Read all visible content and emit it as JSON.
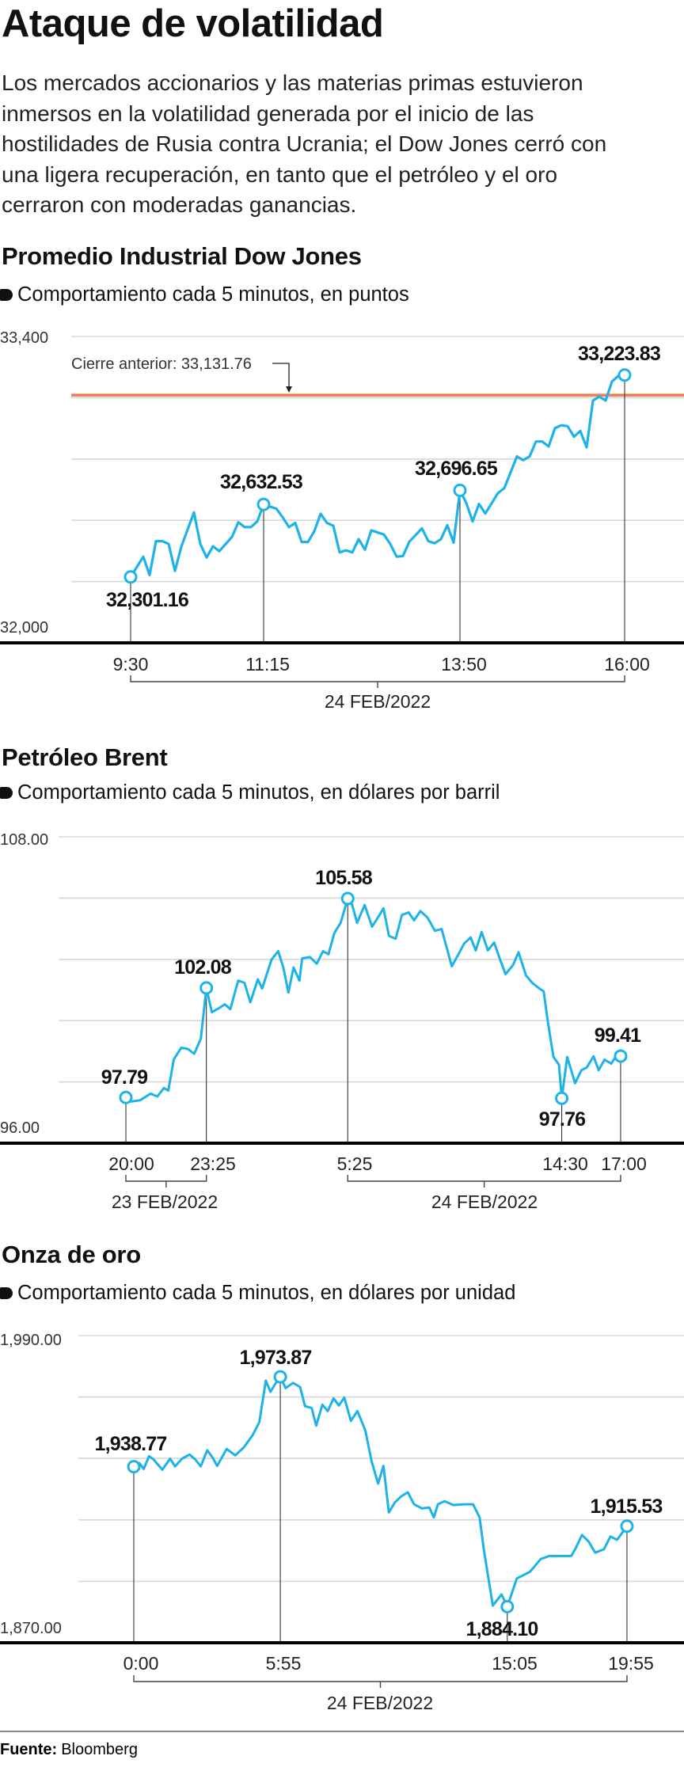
{
  "header": {
    "title": "Ataque de volatilidad",
    "intro_lines": [
      "Los mercados accionarios y las materias primas estuvieron",
      "inmersos en la volatilidad generada por el inicio de las",
      "hostilidades de Rusia contra Ucrania; el Dow Jones cerró con",
      "una ligera recuperación, en tanto que el petróleo y el oro",
      "cerraron con moderadas ganancias."
    ]
  },
  "footer": {
    "source_label": "Fuente:",
    "source": "Bloomberg"
  },
  "colors": {
    "line": "#1db2e8",
    "reference": "#f07c4c",
    "grid": "#d8d8d8",
    "axis": "#000000"
  },
  "chart_data": [
    {
      "type": "line",
      "title": "Promedio Industrial Dow Jones",
      "subtitle": "Comportamiento cada 5 minutos, en puntos",
      "ylim": [
        32000,
        33400
      ],
      "y_ticks_labeled": [
        "33,400",
        "32,000"
      ],
      "gridlines": [
        33400,
        33120,
        32840,
        32560,
        32280
      ],
      "x_unit": "minutes since 9:30",
      "x_tick_labels": [
        "9:30",
        "11:15",
        "13:50",
        "16:00"
      ],
      "date_groups": [
        {
          "label": "24 FEB/2022",
          "from": 0,
          "to": 390
        }
      ],
      "reference": {
        "label": "Cierre anterior: 33,131.76",
        "value": 33131.76
      },
      "annotations": [
        {
          "x": 0,
          "value": 32301.16,
          "label": "32,301.16"
        },
        {
          "x": 105,
          "value": 32632.53,
          "label": "32,632.53"
        },
        {
          "x": 260,
          "value": 32696.65,
          "label": "32,696.65"
        },
        {
          "x": 390,
          "value": 33223.83,
          "label": "33,223.83"
        }
      ],
      "series": [
        [
          0,
          32301.16
        ],
        [
          10,
          32394
        ],
        [
          15,
          32310
        ],
        [
          20,
          32465
        ],
        [
          25,
          32465
        ],
        [
          30,
          32452
        ],
        [
          35,
          32329
        ],
        [
          40,
          32439
        ],
        [
          50,
          32596
        ],
        [
          55,
          32452
        ],
        [
          60,
          32390
        ],
        [
          65,
          32441
        ],
        [
          70,
          32419
        ],
        [
          80,
          32484
        ],
        [
          85,
          32551
        ],
        [
          90,
          32529
        ],
        [
          95,
          32529
        ],
        [
          100,
          32555
        ],
        [
          105,
          32632.53
        ],
        [
          115,
          32613
        ],
        [
          120,
          32574
        ],
        [
          125,
          32529
        ],
        [
          130,
          32548
        ],
        [
          135,
          32461
        ],
        [
          140,
          32461
        ],
        [
          145,
          32510
        ],
        [
          150,
          32590
        ],
        [
          155,
          32548
        ],
        [
          160,
          32535
        ],
        [
          165,
          32413
        ],
        [
          170,
          32423
        ],
        [
          175,
          32413
        ],
        [
          180,
          32474
        ],
        [
          185,
          32426
        ],
        [
          190,
          32514
        ],
        [
          200,
          32495
        ],
        [
          205,
          32452
        ],
        [
          210,
          32394
        ],
        [
          215,
          32397
        ],
        [
          220,
          32462
        ],
        [
          230,
          32523
        ],
        [
          235,
          32465
        ],
        [
          240,
          32455
        ],
        [
          245,
          32474
        ],
        [
          250,
          32538
        ],
        [
          255,
          32458
        ],
        [
          260,
          32696.65
        ],
        [
          265,
          32639
        ],
        [
          270,
          32555
        ],
        [
          275,
          32635
        ],
        [
          280,
          32591
        ],
        [
          290,
          32684
        ],
        [
          295,
          32707
        ],
        [
          305,
          32852
        ],
        [
          310,
          32835
        ],
        [
          315,
          32852
        ],
        [
          320,
          32920
        ],
        [
          325,
          32920
        ],
        [
          330,
          32897
        ],
        [
          335,
          32981
        ],
        [
          340,
          32994
        ],
        [
          345,
          32990
        ],
        [
          350,
          32942
        ],
        [
          355,
          32968
        ],
        [
          360,
          32893
        ],
        [
          365,
          33107
        ],
        [
          370,
          33125
        ],
        [
          375,
          33107
        ],
        [
          380,
          33194
        ],
        [
          385,
          33220
        ],
        [
          390,
          33223.83
        ]
      ]
    },
    {
      "type": "line",
      "title": "Petróleo Brent",
      "subtitle": "Comportamiento cada 5 minutos, en dólares por barril",
      "ylim": [
        96,
        108
      ],
      "y_ticks_labeled": [
        "108.00",
        "96.00"
      ],
      "gridlines": [
        108,
        105.6,
        103.2,
        100.8,
        98.4
      ],
      "x_unit": "minutes since 20:00 (23 Feb)",
      "x_tick_labels": [
        "20:00",
        "23:25",
        "5:25",
        "14:30",
        "17:00"
      ],
      "date_groups": [
        {
          "label": "23 FEB/2022",
          "from": 0,
          "to": 205
        },
        {
          "label": "24 FEB/2022",
          "from": 565,
          "to": 1260
        }
      ],
      "annotations": [
        {
          "x": 0,
          "value": 97.79,
          "label": "97.79"
        },
        {
          "x": 205,
          "value": 102.08,
          "label": "102.08"
        },
        {
          "x": 565,
          "value": 105.58,
          "label": "105.58"
        },
        {
          "x": 1110,
          "value": 97.76,
          "label": "97.76"
        },
        {
          "x": 1260,
          "value": 99.41,
          "label": "99.41"
        }
      ],
      "series": [
        [
          0,
          97.79
        ],
        [
          13,
          97.63
        ],
        [
          36,
          97.68
        ],
        [
          63,
          97.94
        ],
        [
          80,
          97.83
        ],
        [
          97,
          98.16
        ],
        [
          108,
          98.06
        ],
        [
          122,
          99.28
        ],
        [
          141,
          99.74
        ],
        [
          158,
          99.69
        ],
        [
          174,
          99.5
        ],
        [
          191,
          100.1
        ],
        [
          205,
          102.08
        ],
        [
          219,
          101.13
        ],
        [
          236,
          101.28
        ],
        [
          252,
          101.44
        ],
        [
          266,
          101.25
        ],
        [
          286,
          102.37
        ],
        [
          302,
          102.28
        ],
        [
          317,
          101.52
        ],
        [
          336,
          102.42
        ],
        [
          347,
          102.06
        ],
        [
          371,
          103.19
        ],
        [
          388,
          103.52
        ],
        [
          401,
          102.88
        ],
        [
          414,
          101.9
        ],
        [
          427,
          102.88
        ],
        [
          442,
          102.37
        ],
        [
          449,
          103.24
        ],
        [
          469,
          103.29
        ],
        [
          486,
          103.03
        ],
        [
          502,
          103.52
        ],
        [
          516,
          103.4
        ],
        [
          531,
          104.24
        ],
        [
          547,
          104.63
        ],
        [
          565,
          105.58
        ],
        [
          576,
          105.35
        ],
        [
          589,
          104.63
        ],
        [
          608,
          105.33
        ],
        [
          627,
          104.48
        ],
        [
          642,
          104.84
        ],
        [
          656,
          105.2
        ],
        [
          670,
          104.12
        ],
        [
          687,
          104.01
        ],
        [
          703,
          104.94
        ],
        [
          720,
          105.04
        ],
        [
          734,
          104.73
        ],
        [
          750,
          105.09
        ],
        [
          768,
          104.84
        ],
        [
          787,
          104.32
        ],
        [
          804,
          104.39
        ],
        [
          830,
          102.93
        ],
        [
          847,
          103.4
        ],
        [
          861,
          103.81
        ],
        [
          878,
          104.06
        ],
        [
          891,
          103.55
        ],
        [
          906,
          104.27
        ],
        [
          922,
          103.55
        ],
        [
          938,
          103.86
        ],
        [
          953,
          103.19
        ],
        [
          967,
          102.62
        ],
        [
          986,
          102.98
        ],
        [
          1000,
          103.48
        ],
        [
          1019,
          102.57
        ],
        [
          1036,
          102.26
        ],
        [
          1053,
          102.06
        ],
        [
          1064,
          101.95
        ],
        [
          1075,
          100.72
        ],
        [
          1089,
          99.38
        ],
        [
          1103,
          99.07
        ],
        [
          1110,
          97.76
        ],
        [
          1124,
          99.38
        ],
        [
          1144,
          98.35
        ],
        [
          1160,
          98.86
        ],
        [
          1174,
          98.97
        ],
        [
          1191,
          99.4
        ],
        [
          1204,
          98.86
        ],
        [
          1219,
          99.27
        ],
        [
          1236,
          99.12
        ],
        [
          1247,
          99.38
        ],
        [
          1260,
          99.41
        ]
      ]
    },
    {
      "type": "line",
      "title": "Onza de oro",
      "subtitle": "Comportamiento cada 5 minutos, en dólares por unidad",
      "ylim": [
        1870,
        1990
      ],
      "y_ticks_labeled": [
        "1,990.00",
        "1,870.00"
      ],
      "gridlines": [
        1990,
        1966,
        1942,
        1918,
        1894
      ],
      "x_unit": "minutes since 0:00",
      "x_tick_labels": [
        "0:00",
        "5:55",
        "15:05",
        "19:55"
      ],
      "date_groups": [
        {
          "label": "24 FEB/2022",
          "from": 0,
          "to": 1195
        }
      ],
      "annotations": [
        {
          "x": 0,
          "value": 1938.77,
          "label": "1,938.77"
        },
        {
          "x": 355,
          "value": 1973.87,
          "label": "1,973.87"
        },
        {
          "x": 905,
          "value": 1884.1,
          "label": "1,884.10"
        },
        {
          "x": 1195,
          "value": 1915.53,
          "label": "1,915.53"
        }
      ],
      "series": [
        [
          0,
          1938.77
        ],
        [
          14,
          1940.1
        ],
        [
          24,
          1937.9
        ],
        [
          37,
          1942.9
        ],
        [
          48,
          1941.6
        ],
        [
          69,
          1937.6
        ],
        [
          88,
          1941.9
        ],
        [
          100,
          1938.9
        ],
        [
          117,
          1941.9
        ],
        [
          135,
          1943.5
        ],
        [
          149,
          1941.6
        ],
        [
          162,
          1938.9
        ],
        [
          178,
          1945.2
        ],
        [
          191,
          1942.3
        ],
        [
          202,
          1939.1
        ],
        [
          225,
          1945.7
        ],
        [
          246,
          1943.2
        ],
        [
          267,
          1946.4
        ],
        [
          288,
          1951.1
        ],
        [
          304,
          1956.1
        ],
        [
          320,
          1972.4
        ],
        [
          331,
          1968.0
        ],
        [
          343,
          1971.2
        ],
        [
          355,
          1973.87
        ],
        [
          368,
          1969.5
        ],
        [
          386,
          1971.5
        ],
        [
          403,
          1969.9
        ],
        [
          415,
          1962.4
        ],
        [
          431,
          1961.7
        ],
        [
          442,
          1954.8
        ],
        [
          457,
          1963.0
        ],
        [
          470,
          1960.5
        ],
        [
          484,
          1965.5
        ],
        [
          497,
          1962.7
        ],
        [
          510,
          1965.8
        ],
        [
          526,
          1956.7
        ],
        [
          542,
          1960.5
        ],
        [
          561,
          1953.0
        ],
        [
          576,
          1941.0
        ],
        [
          592,
          1932.2
        ],
        [
          605,
          1939.1
        ],
        [
          618,
          1920.9
        ],
        [
          632,
          1924.7
        ],
        [
          648,
          1927.2
        ],
        [
          664,
          1928.8
        ],
        [
          679,
          1924.1
        ],
        [
          698,
          1922.5
        ],
        [
          716,
          1922.8
        ],
        [
          727,
          1919.0
        ],
        [
          737,
          1924.1
        ],
        [
          753,
          1925.3
        ],
        [
          774,
          1923.8
        ],
        [
          801,
          1924.1
        ],
        [
          822,
          1924.1
        ],
        [
          838,
          1919.0
        ],
        [
          848,
          1906.5
        ],
        [
          870,
          1884.5
        ],
        [
          891,
          1888.9
        ],
        [
          905,
          1884.1
        ],
        [
          928,
          1895.1
        ],
        [
          944,
          1896.4
        ],
        [
          960,
          1897.7
        ],
        [
          986,
          1902.7
        ],
        [
          1007,
          1903.9
        ],
        [
          1060,
          1903.9
        ],
        [
          1070,
          1906.7
        ],
        [
          1086,
          1912.1
        ],
        [
          1102,
          1909.6
        ],
        [
          1118,
          1905.2
        ],
        [
          1139,
          1906.5
        ],
        [
          1155,
          1911.5
        ],
        [
          1171,
          1910.2
        ],
        [
          1195,
          1915.53
        ]
      ]
    }
  ]
}
